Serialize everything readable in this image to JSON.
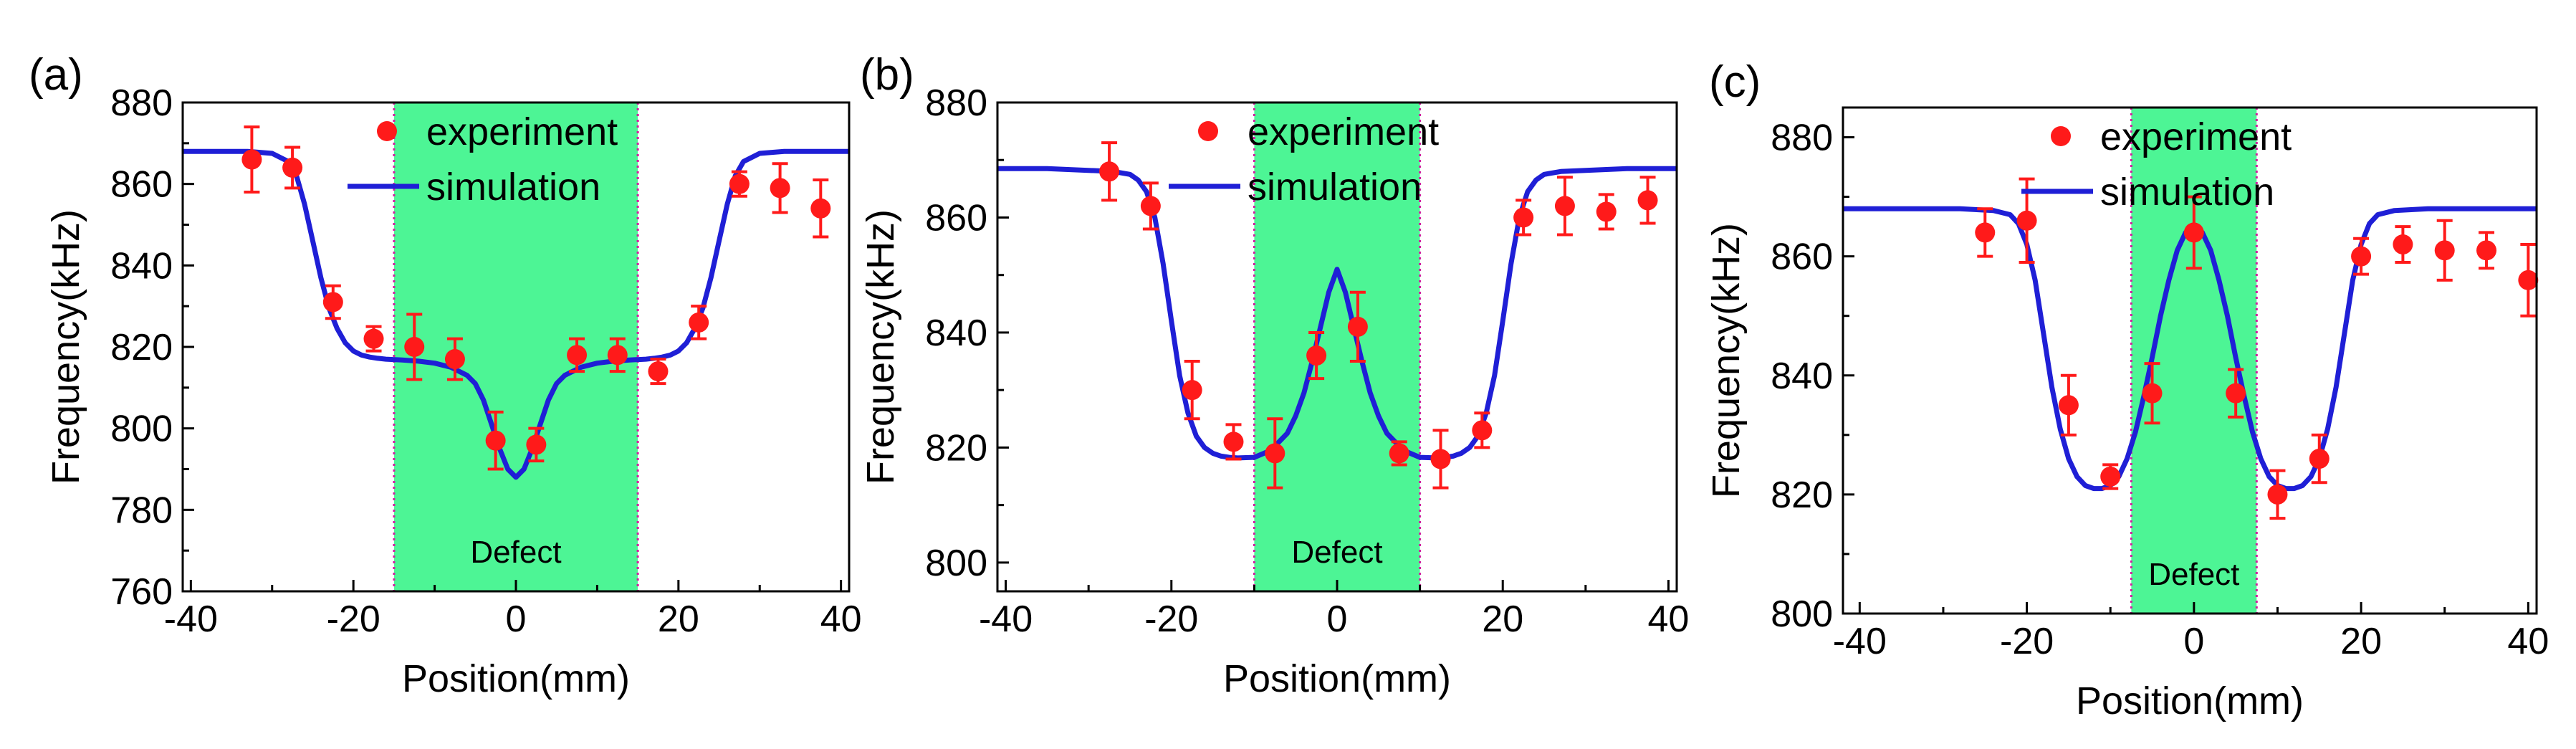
{
  "colors": {
    "experiment": "#ff1a1a",
    "simulation": "#1f1fd6",
    "defect_fill": "#4df595",
    "defect_border": "#d020a0"
  },
  "chart_data": [
    {
      "panel_label": "(a)",
      "type": "scatter",
      "xlabel": "Position(mm)",
      "ylabel": "Frequency(kHz)",
      "xlim": [
        -41,
        41
      ],
      "ylim": [
        760,
        880
      ],
      "xticks": [
        -40,
        -20,
        0,
        20,
        40
      ],
      "yticks": [
        760,
        780,
        800,
        820,
        840,
        860,
        880
      ],
      "defect_region": [
        -15,
        15
      ],
      "defect_label": "Defect",
      "legend": {
        "position": "top-center",
        "entries": [
          "experiment",
          "simulation"
        ]
      },
      "series": [
        {
          "name": "experiment",
          "kind": "points_with_error",
          "x": [
            -32.5,
            -27.5,
            -22.5,
            -17.5,
            -12.5,
            -7.5,
            -2.5,
            2.5,
            7.5,
            12.5,
            17.5,
            22.5,
            27.5,
            32.5,
            37.5
          ],
          "y": [
            866,
            864,
            831,
            822,
            820,
            817,
            797,
            796,
            818,
            818,
            814,
            826,
            860,
            859,
            854
          ],
          "err": [
            8,
            5,
            4,
            3,
            8,
            5,
            7,
            4,
            4,
            4,
            3,
            4,
            3,
            6,
            7
          ]
        },
        {
          "name": "simulation",
          "kind": "line",
          "x": [
            -41,
            -37,
            -33,
            -30,
            -28,
            -27,
            -26,
            -25,
            -24,
            -23,
            -22,
            -21,
            -20,
            -19,
            -18,
            -17,
            -16,
            -14,
            -12,
            -10,
            -8,
            -6,
            -5,
            -4,
            -3,
            -2,
            -1,
            0,
            1,
            2,
            3,
            4,
            5,
            6,
            8,
            10,
            12,
            14,
            16,
            17,
            18,
            19,
            20,
            21,
            22,
            23,
            24,
            25,
            26,
            27,
            28,
            30,
            33,
            37,
            41
          ],
          "y": [
            868,
            868,
            868,
            867.5,
            865.5,
            862,
            855,
            846,
            837,
            829.5,
            824.5,
            821,
            819,
            818,
            817.5,
            817.2,
            817,
            816.8,
            816.5,
            816,
            815,
            813,
            811,
            807,
            801,
            795,
            790,
            788,
            790,
            795,
            801,
            807,
            811,
            813,
            815,
            816,
            816.5,
            816.8,
            817,
            817.2,
            817.5,
            818,
            819,
            821,
            824.5,
            829.5,
            837,
            846,
            855,
            862,
            865.5,
            867.5,
            868,
            868,
            868
          ]
        }
      ]
    },
    {
      "panel_label": "(b)",
      "type": "scatter",
      "xlabel": "Position(mm)",
      "ylabel": "Frequency(kHz)",
      "xlim": [
        -41,
        41
      ],
      "ylim": [
        795,
        880
      ],
      "xticks": [
        -40,
        -20,
        0,
        20,
        40
      ],
      "yticks": [
        800,
        820,
        840,
        860,
        880
      ],
      "defect_region": [
        -10,
        10
      ],
      "defect_label": "Defect",
      "legend": {
        "position": "top-center",
        "entries": [
          "experiment",
          "simulation"
        ]
      },
      "series": [
        {
          "name": "experiment",
          "kind": "points_with_error",
          "x": [
            -27.5,
            -22.5,
            -17.5,
            -12.5,
            -7.5,
            -2.5,
            2.5,
            7.5,
            12.5,
            17.5,
            22.5,
            27.5,
            32.5,
            37.5
          ],
          "y": [
            868,
            862,
            830,
            821,
            819,
            836,
            841,
            819,
            818,
            823,
            860,
            862,
            861,
            863
          ],
          "err": [
            5,
            4,
            5,
            3,
            6,
            4,
            6,
            2,
            5,
            3,
            3,
            5,
            3,
            4
          ]
        },
        {
          "name": "simulation",
          "kind": "line",
          "x": [
            -41,
            -35,
            -30,
            -27,
            -25,
            -24,
            -23,
            -22,
            -21,
            -20,
            -19,
            -18,
            -17,
            -16,
            -15,
            -14,
            -13,
            -12,
            -10,
            -8,
            -6,
            -5,
            -4,
            -3,
            -2,
            -1,
            0,
            1,
            2,
            3,
            4,
            5,
            6,
            8,
            10,
            12,
            13,
            14,
            15,
            16,
            17,
            18,
            19,
            20,
            21,
            22,
            23,
            24,
            25,
            27,
            30,
            35,
            41
          ],
          "y": [
            868.5,
            868.5,
            868.2,
            868,
            867.5,
            866.5,
            864.5,
            860,
            852,
            842,
            832.5,
            826,
            822,
            820,
            819,
            818.5,
            818.3,
            818.2,
            818.3,
            819.5,
            822.5,
            825.5,
            829.5,
            835,
            841,
            847,
            851,
            847,
            841,
            835,
            829.5,
            825.5,
            822.5,
            819.5,
            818.3,
            818.2,
            818.3,
            818.5,
            819,
            820,
            822,
            826,
            832.5,
            842,
            852,
            860,
            864.5,
            866.5,
            867.5,
            868,
            868.2,
            868.5,
            868.5
          ]
        }
      ]
    },
    {
      "panel_label": "(c)",
      "type": "scatter",
      "xlabel": "Position(mm)",
      "ylabel": "Frequency(kHz)",
      "xlim": [
        -42,
        41
      ],
      "ylim": [
        800,
        885
      ],
      "xticks": [
        -40,
        -20,
        0,
        20,
        40
      ],
      "yticks": [
        800,
        820,
        840,
        860,
        880
      ],
      "defect_region": [
        -7.5,
        7.5
      ],
      "defect_label": "Defect",
      "legend": {
        "position": "top-center",
        "entries": [
          "experiment",
          "simulation"
        ]
      },
      "series": [
        {
          "name": "experiment",
          "kind": "points_with_error",
          "x": [
            -25,
            -20,
            -15,
            -10,
            -5,
            0,
            5,
            10,
            15,
            20,
            25,
            30,
            35,
            40
          ],
          "y": [
            864,
            866,
            835,
            823,
            837,
            864,
            837,
            820,
            826,
            860,
            862,
            861,
            861,
            856
          ],
          "err": [
            4,
            7,
            5,
            2,
            5,
            6,
            4,
            4,
            4,
            3,
            3,
            5,
            3,
            6
          ]
        },
        {
          "name": "simulation",
          "kind": "line",
          "x": [
            -42,
            -35,
            -28,
            -24,
            -22,
            -21,
            -20,
            -19,
            -18,
            -17,
            -16,
            -15,
            -14,
            -13,
            -12,
            -11,
            -10,
            -9,
            -8,
            -7,
            -6,
            -5,
            -4,
            -3,
            -2,
            -1,
            0,
            1,
            2,
            3,
            4,
            5,
            6,
            7,
            8,
            9,
            10,
            11,
            12,
            13,
            14,
            15,
            16,
            17,
            18,
            19,
            20,
            21,
            22,
            24,
            28,
            35,
            41
          ],
          "y": [
            868,
            868,
            868,
            867.7,
            867,
            865.5,
            862,
            856,
            847,
            838,
            831,
            826,
            823,
            821.5,
            821,
            821,
            821.5,
            823,
            826,
            830.5,
            836.5,
            843,
            850,
            856,
            861,
            864,
            865,
            864,
            861,
            856,
            850,
            843,
            836.5,
            830.5,
            826,
            823,
            821.5,
            821,
            821,
            821.5,
            823,
            826,
            831,
            838,
            847,
            856,
            862,
            865.5,
            867,
            867.7,
            868,
            868,
            868
          ]
        }
      ]
    }
  ]
}
